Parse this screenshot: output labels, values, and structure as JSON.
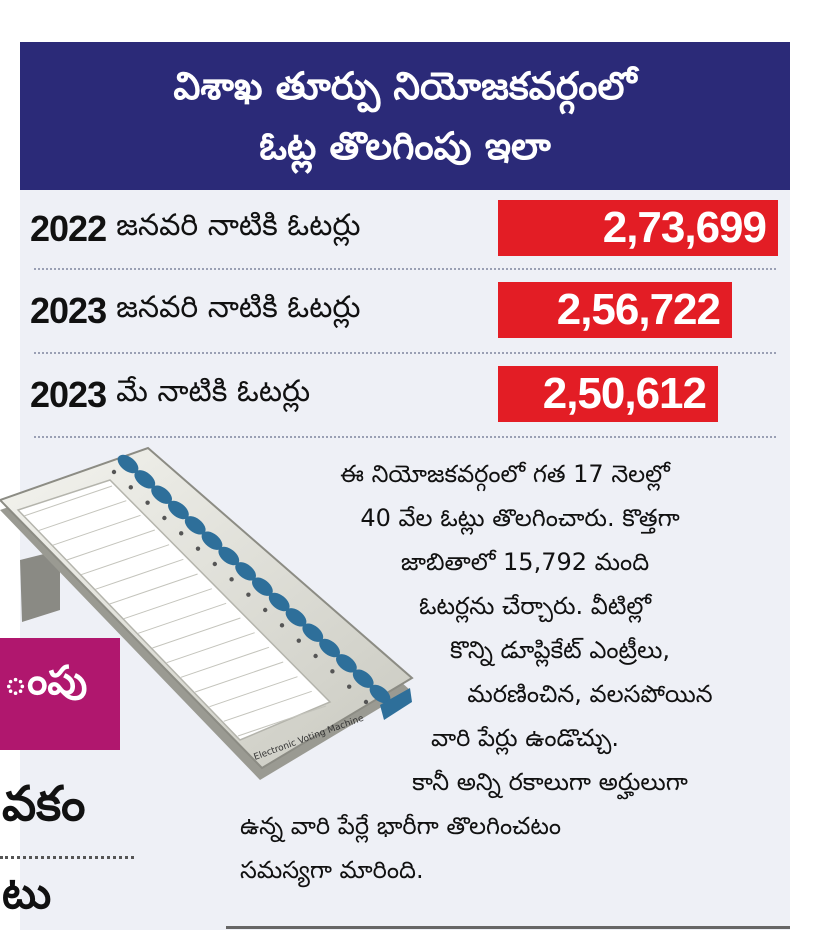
{
  "header": {
    "line1": "విశాఖ తూర్పు నియోజకవర్గంలో",
    "line2": "ఓట్ల తొలగింపు ఇలా"
  },
  "rows": [
    {
      "year": "2022",
      "label": "జనవరి నాటికి ఓటర్లు",
      "value": "2,73,699"
    },
    {
      "year": "2023",
      "label": "జనవరి నాటికి ఓటర్లు",
      "value": "2,56,722"
    },
    {
      "year": "2023",
      "label": "మే నాటికి ఓటర్లు",
      "value": "2,50,612"
    }
  ],
  "paragraph": [
    "ఈ నియోజకవర్గంలో గత 17 నెలల్లో",
    "40 వేల ఓట్లు తొలగించారు. కొత్తగా",
    "జాబితాలో 15,792 మంది",
    "ఓటర్లను చేర్చారు. వీటిల్లో",
    "కొన్ని డూప్లికేట్ ఎంట్రీలు,",
    "మరణించిన, వలసపోయిన",
    "వారి పేర్లు ఉండొచ్చు.",
    "కానీ అన్ని రకాలుగా అర్హులుగా",
    "ఉన్న వారి పేర్లే భారీగా తొలగించటం",
    "సమస్యగా మారింది."
  ],
  "side": {
    "magenta_text": "ంపు",
    "heading": "వకం",
    "subtext": "టు"
  },
  "evm": {
    "label": "Electronic Voting Machine"
  },
  "colors": {
    "header_bg": "#2b2a78",
    "value_bg": "#e31d25",
    "box_bg": "#eef0f6",
    "magenta": "#b0176e",
    "evm_button": "#2e6f9a"
  }
}
